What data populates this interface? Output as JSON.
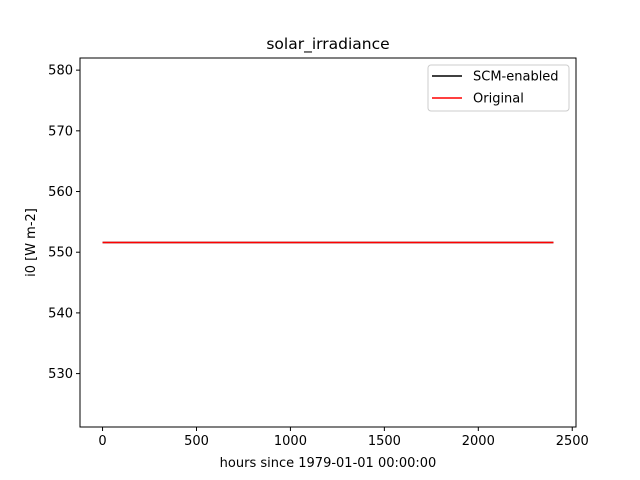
{
  "chart_data": {
    "type": "line",
    "title": "solar_irradiance",
    "xlabel": "hours since 1979-01-01 00:00:00",
    "ylabel": "i0 [W m-2]",
    "xlim": [
      -120,
      2520
    ],
    "ylim": [
      521.2,
      582.0
    ],
    "xticks": [
      0,
      500,
      1000,
      1500,
      2000,
      2500
    ],
    "yticks": [
      530,
      540,
      550,
      560,
      570,
      580
    ],
    "grid": false,
    "legend_position": "top-right",
    "series": [
      {
        "name": "SCM-enabled",
        "color": "#000000",
        "x": [
          0,
          2400
        ],
        "y": [
          551.6,
          551.6
        ]
      },
      {
        "name": "Original",
        "color": "#ff0000",
        "x": [
          0,
          2400
        ],
        "y": [
          551.6,
          551.6
        ]
      }
    ]
  }
}
